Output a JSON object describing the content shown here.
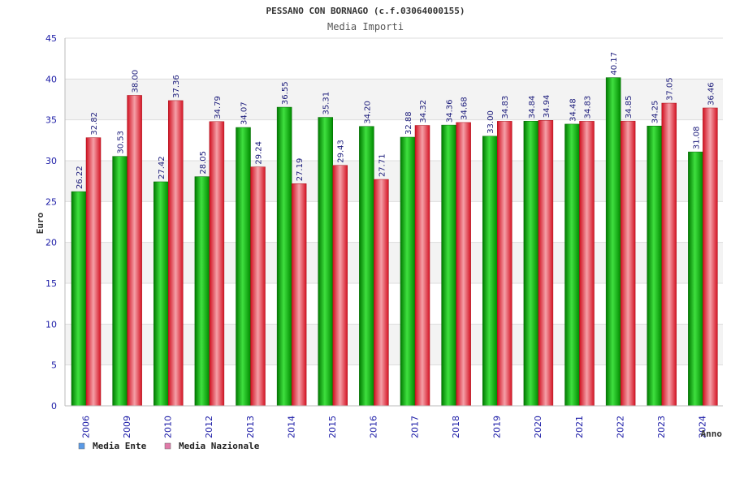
{
  "chart_data": {
    "type": "bar",
    "title": "PESSANO CON BORNAGO (c.f.03064000155)",
    "subtitle": "Media Importi",
    "xlabel": "Anno",
    "ylabel": "Euro",
    "ylim": [
      0,
      45
    ],
    "yticks": [
      "0",
      "5",
      "10",
      "15",
      "20",
      "25",
      "30",
      "35",
      "40",
      "45"
    ],
    "grid": true,
    "legend_position": "bottom-left",
    "categories": [
      "2006",
      "2009",
      "2010",
      "2012",
      "2013",
      "2014",
      "2015",
      "2016",
      "2017",
      "2018",
      "2019",
      "2020",
      "2021",
      "2022",
      "2023",
      "2024"
    ],
    "series": [
      {
        "name": "Media Ente",
        "color": "#00a800",
        "legend_color": "#5a9ae6",
        "values": [
          26.22,
          30.53,
          27.42,
          28.05,
          34.07,
          36.55,
          35.31,
          34.2,
          32.88,
          34.36,
          33.0,
          34.84,
          34.48,
          40.17,
          34.25,
          31.08
        ],
        "labels": [
          "26.22",
          "30.53",
          "27.42",
          "28.05",
          "34.07",
          "36.55",
          "35.31",
          "34.20",
          "32.88",
          "34.36",
          "33.00",
          "34.84",
          "34.48",
          "40.17",
          "34.25",
          "31.08"
        ]
      },
      {
        "name": "Media Nazionale",
        "color": "#e8202a",
        "legend_color": "#e07aa8",
        "values": [
          32.82,
          38.0,
          37.36,
          34.79,
          29.24,
          27.19,
          29.43,
          27.71,
          34.32,
          34.68,
          34.83,
          34.94,
          34.83,
          34.85,
          37.05,
          36.46
        ],
        "labels": [
          "32.82",
          "38.00",
          "37.36",
          "34.79",
          "29.24",
          "27.19",
          "29.43",
          "27.71",
          "34.32",
          "34.68",
          "34.83",
          "34.94",
          "34.83",
          "34.85",
          "37.05",
          "36.46"
        ]
      }
    ]
  }
}
